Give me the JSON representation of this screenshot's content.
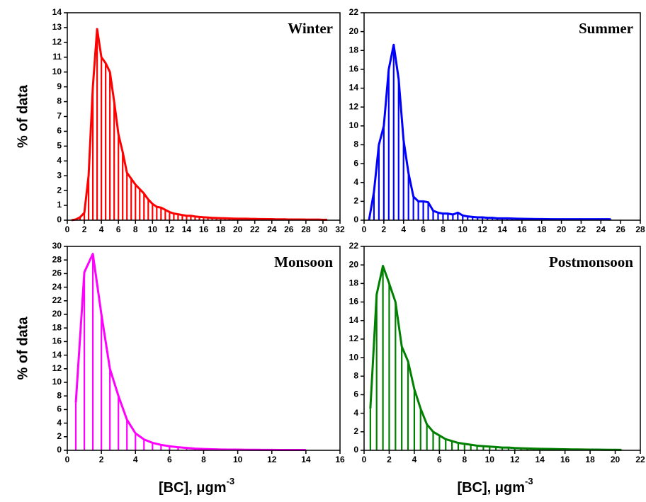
{
  "chart_data": [
    {
      "type": "line",
      "title": "Winter",
      "ylabel": "% of data",
      "color": "#ff0000",
      "drop_lines": true,
      "x": [
        0.5,
        1,
        1.5,
        2,
        2.5,
        3,
        3.5,
        4,
        4.5,
        5,
        5.5,
        6,
        6.5,
        7,
        7.5,
        8,
        8.5,
        9,
        9.5,
        10,
        10.5,
        11,
        11.5,
        12,
        12.5,
        13,
        13.5,
        14,
        14.5,
        15,
        15.5,
        16,
        16.5,
        17,
        17.5,
        18,
        18.5,
        19,
        19.5,
        20,
        20.5,
        21,
        21.5,
        22,
        22.5,
        23,
        23.5,
        24,
        24.5,
        25,
        25.5,
        26,
        26.5,
        27,
        27.5,
        28,
        28.5,
        29,
        29.5,
        30,
        30.5
      ],
      "values": [
        0,
        0.05,
        0.2,
        0.5,
        3,
        9,
        12.9,
        11,
        10.6,
        10,
        8,
        5.8,
        4.6,
        3.2,
        2.8,
        2.4,
        2.1,
        1.8,
        1.4,
        1.1,
        0.9,
        0.85,
        0.7,
        0.55,
        0.45,
        0.4,
        0.35,
        0.3,
        0.3,
        0.25,
        0.22,
        0.2,
        0.18,
        0.16,
        0.15,
        0.14,
        0.13,
        0.12,
        0.11,
        0.1,
        0.1,
        0.1,
        0.09,
        0.09,
        0.08,
        0.08,
        0.07,
        0.07,
        0.06,
        0.06,
        0.06,
        0.05,
        0.05,
        0.05,
        0.05,
        0.04,
        0.04,
        0.04,
        0.04,
        0.03,
        0.03
      ],
      "xlim": [
        0,
        32
      ],
      "ylim": [
        0,
        14
      ],
      "xticks": [
        0,
        2,
        4,
        6,
        8,
        10,
        12,
        14,
        16,
        18,
        20,
        22,
        24,
        26,
        28,
        30,
        32
      ],
      "yticks": [
        0,
        1,
        2,
        3,
        4,
        5,
        6,
        7,
        8,
        9,
        10,
        11,
        12,
        13,
        14
      ]
    },
    {
      "type": "line",
      "title": "Summer",
      "color": "#0000ff",
      "drop_lines": true,
      "x": [
        0.5,
        1,
        1.5,
        2,
        2.5,
        3,
        3.5,
        4,
        4.5,
        5,
        5.5,
        6,
        6.5,
        7,
        7.5,
        8,
        8.5,
        9,
        9.5,
        10,
        10.5,
        11,
        11.5,
        12,
        12.5,
        13,
        13.5,
        14,
        14.5,
        15,
        15.5,
        16,
        16.5,
        17,
        17.5,
        18,
        18.5,
        19,
        19.5,
        20,
        20.5,
        21,
        21.5,
        22,
        22.5,
        23,
        23.5,
        24,
        24.5,
        25
      ],
      "values": [
        0,
        3,
        8,
        10,
        16,
        18.6,
        15,
        8.5,
        5,
        2.5,
        2,
        2,
        1.9,
        1,
        0.8,
        0.7,
        0.7,
        0.6,
        0.8,
        0.5,
        0.4,
        0.35,
        0.3,
        0.3,
        0.25,
        0.25,
        0.2,
        0.2,
        0.2,
        0.18,
        0.16,
        0.15,
        0.14,
        0.13,
        0.12,
        0.12,
        0.11,
        0.1,
        0.1,
        0.1,
        0.1,
        0.1,
        0.1,
        0.1,
        0.1,
        0.1,
        0.1,
        0.1,
        0.1,
        0.1
      ],
      "xlim": [
        0,
        28
      ],
      "ylim": [
        0,
        22
      ],
      "xticks": [
        0,
        2,
        4,
        6,
        8,
        10,
        12,
        14,
        16,
        18,
        20,
        22,
        24,
        26,
        28
      ],
      "yticks": [
        0,
        2,
        4,
        6,
        8,
        10,
        12,
        14,
        16,
        18,
        20,
        22
      ]
    },
    {
      "type": "line",
      "title": "Monsoon",
      "ylabel": "% of data",
      "xlabel": "[BC], μgm",
      "xlabel_sup": "-3",
      "color": "#ff00ff",
      "drop_lines": true,
      "x": [
        0.5,
        1,
        1.5,
        2,
        2.5,
        3,
        3.5,
        4,
        4.5,
        5,
        5.5,
        6,
        6.5,
        7,
        7.5,
        8,
        8.5,
        9,
        9.5,
        10,
        10.5,
        11,
        11.5,
        12,
        12.5,
        13,
        13.5,
        14
      ],
      "values": [
        7,
        26.2,
        28.9,
        20,
        12,
        8,
        4.5,
        2.5,
        1.6,
        1.1,
        0.8,
        0.6,
        0.45,
        0.35,
        0.25,
        0.2,
        0.15,
        0.12,
        0.1,
        0.1,
        0.08,
        0.08,
        0.06,
        0.06,
        0.05,
        0.05,
        0.05,
        0.05
      ],
      "xlim": [
        0,
        16
      ],
      "ylim": [
        0,
        30
      ],
      "xticks": [
        0,
        2,
        4,
        6,
        8,
        10,
        12,
        14,
        16
      ],
      "yticks": [
        0,
        2,
        4,
        6,
        8,
        10,
        12,
        14,
        16,
        18,
        20,
        22,
        24,
        26,
        28,
        30
      ]
    },
    {
      "type": "line",
      "title": "Postmonsoon",
      "xlabel": "[BC], μgm",
      "xlabel_sup": "-3",
      "color": "#008000",
      "drop_lines": true,
      "x": [
        0.5,
        1,
        1.5,
        2,
        2.5,
        3,
        3.5,
        4,
        4.5,
        5,
        5.5,
        6,
        6.5,
        7,
        7.5,
        8,
        8.5,
        9,
        9.5,
        10,
        10.5,
        11,
        11.5,
        12,
        12.5,
        13,
        13.5,
        14,
        14.5,
        15,
        15.5,
        16,
        16.5,
        17,
        17.5,
        18,
        18.5,
        19,
        19.5,
        20,
        20.5
      ],
      "values": [
        4.5,
        16.8,
        19.9,
        18,
        16,
        11.2,
        9.6,
        6.6,
        4.5,
        2.8,
        2,
        1.6,
        1.2,
        1,
        0.8,
        0.7,
        0.6,
        0.5,
        0.45,
        0.4,
        0.35,
        0.3,
        0.3,
        0.25,
        0.22,
        0.2,
        0.18,
        0.16,
        0.15,
        0.14,
        0.12,
        0.11,
        0.1,
        0.1,
        0.09,
        0.08,
        0.08,
        0.07,
        0.06,
        0.06,
        0.05
      ],
      "xlim": [
        0,
        22
      ],
      "ylim": [
        0,
        22
      ],
      "xticks": [
        0,
        2,
        4,
        6,
        8,
        10,
        12,
        14,
        16,
        18,
        20,
        22
      ],
      "yticks": [
        0,
        2,
        4,
        6,
        8,
        10,
        12,
        14,
        16,
        18,
        20,
        22
      ]
    }
  ]
}
